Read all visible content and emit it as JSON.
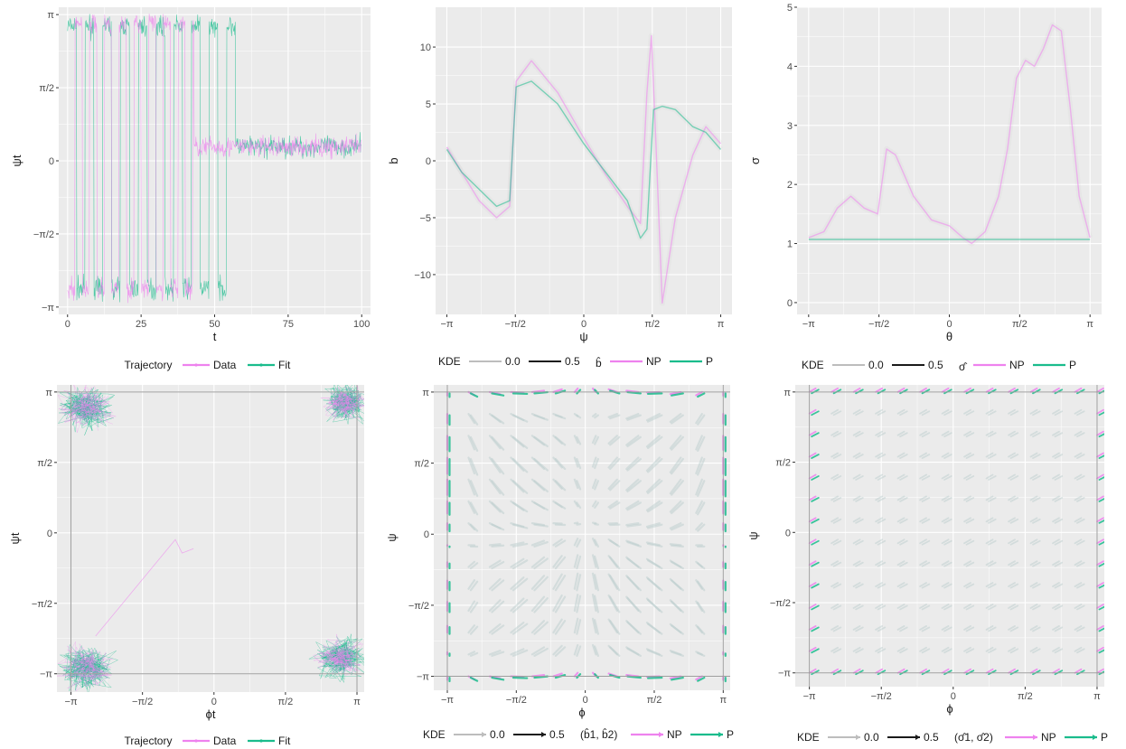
{
  "colors": {
    "data": "#EE82EE",
    "fit": "#1ABC8C",
    "panel": "#EBEBEB",
    "grid": "#FFFFFF",
    "gray": "#9E9E9E",
    "dark": "#1a1a1a"
  },
  "symbols": {
    "pi": "π",
    "minus": "−"
  },
  "chart_data": [
    {
      "id": "p1",
      "type": "line",
      "xlabel": "t",
      "ylabel": "ψt",
      "xlim": [
        -3,
        103
      ],
      "ylim": [
        -3.3,
        3.3
      ],
      "xticks": [
        0,
        25,
        50,
        75,
        100
      ],
      "xtick_labels": [
        "0",
        "25",
        "50",
        "75",
        "100"
      ],
      "yticks": [
        -3.1416,
        -1.5708,
        0,
        1.5708,
        3.1416
      ],
      "ytick_labels": [
        "−π",
        "−π/2",
        "0",
        "π/2",
        "π"
      ],
      "segments": [
        {
          "from": 0,
          "to": 43,
          "mean": 2.9,
          "sd": 0.25
        },
        {
          "from": 43,
          "to": 57,
          "mean": 0.3,
          "sd": 0.25
        },
        {
          "from": 57,
          "to": 100,
          "mean": 0.3,
          "sd": 0.25
        },
        {
          "from": 0,
          "to": 57,
          "mean": -2.75,
          "sd": 0.25
        }
      ],
      "legend": {
        "title": "Trajectory",
        "items": [
          "Data",
          "Fit"
        ]
      }
    },
    {
      "id": "p2",
      "type": "line",
      "xlabel": "ψ",
      "ylabel": "b",
      "xlim": [
        -3.4,
        3.4
      ],
      "ylim": [
        -13.5,
        13.5
      ],
      "xticks": [
        -3.1416,
        -1.5708,
        0,
        1.5708,
        3.1416
      ],
      "xtick_labels": [
        "−π",
        "−π/2",
        "0",
        "π/2",
        "π"
      ],
      "yticks": [
        -10,
        -5,
        0,
        5,
        10
      ],
      "ytick_labels": [
        "−10",
        "−5",
        "0",
        "5",
        "10"
      ],
      "series": [
        {
          "name": "NP",
          "x": [
            -3.14,
            -2.8,
            -2.4,
            -2.0,
            -1.7,
            -1.55,
            -1.2,
            -0.6,
            0,
            0.5,
            1.0,
            1.3,
            1.45,
            1.55,
            1.65,
            1.8,
            2.1,
            2.5,
            2.8,
            3.14
          ],
          "y": [
            1.2,
            -1.0,
            -3.5,
            -5.0,
            -4.0,
            7.0,
            8.8,
            6.0,
            2.0,
            -1.2,
            -4.0,
            -5.5,
            6.0,
            11.0,
            2.0,
            -12.5,
            -5.0,
            0.5,
            3.0,
            1.5
          ]
        },
        {
          "name": "P",
          "x": [
            -3.14,
            -2.8,
            -2.4,
            -2.0,
            -1.7,
            -1.55,
            -1.2,
            -0.6,
            0,
            0.5,
            1.0,
            1.3,
            1.45,
            1.6,
            1.8,
            2.1,
            2.5,
            2.8,
            3.14
          ],
          "y": [
            1.0,
            -1.0,
            -2.5,
            -4.0,
            -3.5,
            6.5,
            7.0,
            5.0,
            1.5,
            -1.0,
            -3.5,
            -6.8,
            -6.0,
            4.5,
            4.8,
            4.5,
            3.0,
            2.5,
            1.0
          ]
        }
      ],
      "legend": {
        "kde_title": "KDE",
        "kde_levels": [
          "0.0",
          "0.5"
        ],
        "title": "b̂",
        "items": [
          "NP",
          "P"
        ]
      }
    },
    {
      "id": "p3",
      "type": "line",
      "xlabel": "θ",
      "ylabel": "σ",
      "xlim": [
        -3.4,
        3.4
      ],
      "ylim": [
        -0.2,
        5.0
      ],
      "xticks": [
        -3.1416,
        -1.5708,
        0,
        1.5708,
        3.1416
      ],
      "xtick_labels": [
        "−π",
        "−π/2",
        "0",
        "π/2",
        "π"
      ],
      "yticks": [
        0,
        1,
        2,
        3,
        4,
        5
      ],
      "ytick_labels": [
        "0",
        "1",
        "2",
        "3",
        "4",
        "5"
      ],
      "series": [
        {
          "name": "NP",
          "x": [
            -3.14,
            -2.8,
            -2.5,
            -2.2,
            -1.9,
            -1.6,
            -1.4,
            -1.2,
            -0.8,
            -0.4,
            0,
            0.3,
            0.5,
            0.8,
            1.1,
            1.3,
            1.5,
            1.7,
            1.9,
            2.1,
            2.3,
            2.5,
            2.7,
            2.9,
            3.14
          ],
          "y": [
            1.1,
            1.2,
            1.6,
            1.8,
            1.6,
            1.5,
            2.6,
            2.5,
            1.8,
            1.4,
            1.3,
            1.1,
            1.0,
            1.2,
            1.8,
            2.6,
            3.8,
            4.1,
            4.0,
            4.3,
            4.7,
            4.6,
            3.3,
            1.8,
            1.1
          ]
        },
        {
          "name": "P",
          "x": [
            -3.14,
            3.14
          ],
          "y": [
            1.07,
            1.07
          ]
        }
      ],
      "legend": {
        "kde_title": "KDE",
        "kde_levels": [
          "0.0",
          "0.5"
        ],
        "title": "σ̂",
        "items": [
          "NP",
          "P"
        ]
      }
    },
    {
      "id": "p4",
      "type": "scatter",
      "xlabel": "ϕt",
      "ylabel": "ψt",
      "xlim": [
        -3.45,
        3.3
      ],
      "ylim": [
        -3.55,
        3.3
      ],
      "xticks": [
        -3.1416,
        -1.5708,
        0,
        1.5708,
        3.1416
      ],
      "xtick_labels": [
        "−π",
        "−π/2",
        "0",
        "π/2",
        "π"
      ],
      "yticks": [
        -3.1416,
        -1.5708,
        0,
        1.5708,
        3.1416
      ],
      "ytick_labels": [
        "−π",
        "−π/2",
        "0",
        "π/2",
        "π"
      ],
      "clusters": [
        {
          "cx": -2.8,
          "cy": 2.8,
          "spread": 0.45
        },
        {
          "cx": 2.9,
          "cy": 2.9,
          "spread": 0.35
        },
        {
          "cx": -2.8,
          "cy": -3.0,
          "spread": 0.45
        },
        {
          "cx": 2.8,
          "cy": -2.8,
          "spread": 0.4
        }
      ],
      "legend": {
        "title": "Trajectory",
        "items": [
          "Data",
          "Fit"
        ]
      }
    },
    {
      "id": "p5",
      "type": "scatter",
      "xlabel": "ϕ",
      "ylabel": "ψ",
      "xlim": [
        -3.45,
        3.3
      ],
      "ylim": [
        -3.45,
        3.3
      ],
      "xticks": [
        -3.1416,
        -1.5708,
        0,
        1.5708,
        3.1416
      ],
      "xtick_labels": [
        "−π",
        "−π/2",
        "0",
        "π/2",
        "π"
      ],
      "yticks": [
        -3.1416,
        -1.5708,
        0,
        1.5708,
        3.1416
      ],
      "ytick_labels": [
        "−π",
        "−π/2",
        "0",
        "π/2",
        "π"
      ],
      "grid_n": 14,
      "legend": {
        "kde_title": "KDE",
        "kde_levels": [
          "0.0",
          "0.5"
        ],
        "title": "(b̂1, b̂2)",
        "items": [
          "NP",
          "P"
        ]
      }
    },
    {
      "id": "p6",
      "type": "scatter",
      "xlabel": "ϕ",
      "ylabel": "ψ",
      "xlim": [
        -3.45,
        3.3
      ],
      "ylim": [
        -3.45,
        3.3
      ],
      "xticks": [
        -3.1416,
        -1.5708,
        0,
        1.5708,
        3.1416
      ],
      "xtick_labels": [
        "−π",
        "−π/2",
        "0",
        "π/2",
        "π"
      ],
      "yticks": [
        -3.1416,
        -1.5708,
        0,
        1.5708,
        3.1416
      ],
      "ytick_labels": [
        "−π",
        "−π/2",
        "0",
        "π/2",
        "π"
      ],
      "grid_n": 14,
      "legend": {
        "kde_title": "KDE",
        "kde_levels": [
          "0.0",
          "0.5"
        ],
        "title": "(σ̂1, σ̂2)",
        "items": [
          "NP",
          "P"
        ]
      }
    }
  ]
}
